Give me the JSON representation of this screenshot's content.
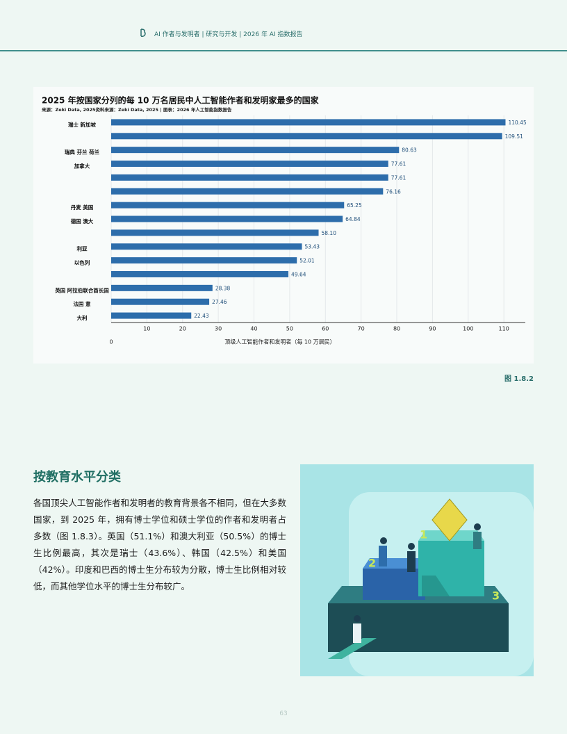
{
  "header": {
    "breadcrumb": "AI 作者与发明者 | 研究与开发 | 2026 年 AI 指数报告"
  },
  "chart_data": {
    "type": "barh",
    "title": "2025 年按国家分列的每 10 万名居民中人工智能作者和发明家最多的国家",
    "subtitle": "来源：Zeki Data, 2025资料来源：Zeki Data, 2025 | 图表：2026 年人工智能指数报告",
    "xlabel": "顶级人工智能作者和发明者（每 10 万居民）",
    "categories": [
      "瑞士 新加坡",
      null,
      "瑞典 芬兰 荷兰",
      "加拿大",
      null,
      null,
      "丹麦 美国",
      "德国 澳大",
      null,
      "利亚",
      "以色列",
      null,
      "英国 阿拉伯联合酋长国",
      "法国 意",
      "大利"
    ],
    "values": [
      110.45,
      109.51,
      80.63,
      77.61,
      77.61,
      76.16,
      65.25,
      64.84,
      58.1,
      53.43,
      52.01,
      49.64,
      28.38,
      27.46,
      22.43
    ],
    "value_labels": [
      "110.45",
      "109.51",
      "80.63",
      "77.61",
      "77.61",
      "76.16",
      "65.25",
      "64.84",
      "58.10",
      "53.43",
      "52.01",
      "49.64",
      "28.38",
      "27.46",
      "22.43"
    ],
    "color": "#2d6dab",
    "xlim": [
      0,
      116
    ],
    "xticks": [
      0,
      10,
      20,
      30,
      40,
      50,
      60,
      70,
      80,
      90,
      100,
      110
    ],
    "grid": true
  },
  "figure_label": "图 1.8.2",
  "section": {
    "heading": "按教育水平分类",
    "paragraph": "各国顶尖人工智能作者和发明者的教育背景各不相同，但在大多数国家，到 2025 年，拥有博士学位和硕士学位的作者和发明者占多数（图 1.8.3）。英国（51.1%）和澳大利亚（50.5%）的博士生比例最高，其次是瑞士（43.6%）、韩国（42.5%）和美国（42%）。印度和巴西的博士生分布较为分散，博士生比例相对较低，而其他学位水平的博士生分布较广。"
  },
  "page_number": "63"
}
